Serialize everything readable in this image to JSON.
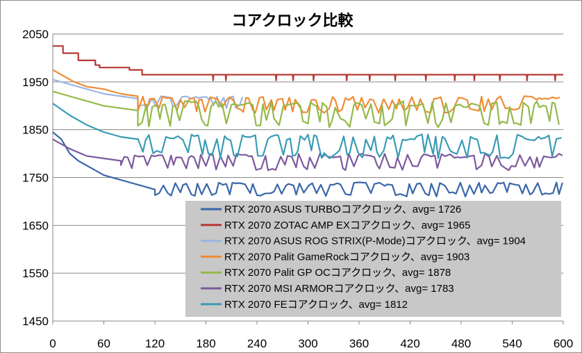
{
  "chart_data": {
    "type": "line",
    "title": "コアクロック比較",
    "xlabel": "",
    "ylabel": "",
    "xlim": [
      0,
      600
    ],
    "ylim": [
      1450,
      2050
    ],
    "x_ticks": [
      0,
      60,
      120,
      180,
      240,
      300,
      360,
      420,
      480,
      540,
      600
    ],
    "y_ticks": [
      1450,
      1550,
      1650,
      1750,
      1850,
      1950,
      2050
    ],
    "x_tick_labels": [
      "0",
      "60",
      "120",
      "180",
      "240",
      "300",
      "360",
      "420",
      "480",
      "540",
      "600"
    ],
    "y_tick_labels": [
      "1450",
      "1550",
      "1650",
      "1750",
      "1850",
      "1950",
      "2050"
    ],
    "grid": "horizontal",
    "legend_position": "bottom-right inside plot",
    "legend_background": "#c8c8c8",
    "series": [
      {
        "name": "RTX 2070 ASUS TURBOコアクロック、avg= 1726",
        "color": "#3a66a8",
        "start": [
          [
            0,
            1845
          ],
          [
            10,
            1830
          ],
          [
            20,
            1800
          ],
          [
            30,
            1785
          ],
          [
            45,
            1770
          ],
          [
            60,
            1755
          ],
          [
            80,
            1745
          ],
          [
            100,
            1735
          ],
          [
            120,
            1725
          ]
        ],
        "steady": {
          "low": 1710,
          "high": 1740,
          "from": 120,
          "to": 600
        }
      },
      {
        "name": "RTX 2070 ZOTAC AMP EXコアクロック、avg= 1965",
        "color": "#b53a35",
        "start": [
          [
            0,
            2025
          ],
          [
            12,
            2025
          ],
          [
            12,
            2010
          ],
          [
            30,
            2010
          ],
          [
            30,
            1995
          ],
          [
            50,
            1995
          ],
          [
            50,
            1985
          ],
          [
            55,
            1985
          ],
          [
            55,
            1980
          ],
          [
            90,
            1980
          ],
          [
            90,
            1975
          ],
          [
            105,
            1975
          ],
          [
            105,
            1965
          ]
        ],
        "steady": {
          "low": 1965,
          "high": 1965,
          "from": 105,
          "to": 600,
          "dips": [
            188,
            203,
            262,
            282,
            306,
            345,
            372,
            402,
            438,
            472,
            495,
            525,
            557,
            590
          ]
        }
      },
      {
        "name": "RTX 2070 ASUS ROG STRIX(P-Mode)コアクロック、avg= 1904",
        "color": "#9ab7e0",
        "start": [
          [
            0,
            1955
          ],
          [
            20,
            1945
          ],
          [
            40,
            1935
          ],
          [
            60,
            1925
          ],
          [
            80,
            1920
          ],
          [
            100,
            1915
          ]
        ],
        "steady": {
          "low": 1895,
          "high": 1920,
          "from": 100,
          "to": 225
        }
      },
      {
        "name": "RTX 2070 Palit GameRockコアクロック、avg= 1903",
        "color": "#ef8c35",
        "start": [
          [
            0,
            1975
          ],
          [
            10,
            1965
          ],
          [
            25,
            1950
          ],
          [
            40,
            1940
          ],
          [
            60,
            1935
          ],
          [
            80,
            1925
          ],
          [
            100,
            1920
          ]
        ],
        "steady": {
          "low": 1885,
          "high": 1920,
          "from": 100,
          "to": 600
        }
      },
      {
        "name": "RTX 2070 Palit GP OCコアクロック、avg= 1878",
        "color": "#93b94a",
        "start": [
          [
            0,
            1930
          ],
          [
            20,
            1920
          ],
          [
            40,
            1910
          ],
          [
            60,
            1900
          ],
          [
            80,
            1895
          ],
          [
            100,
            1890
          ]
        ],
        "steady": {
          "low": 1855,
          "high": 1910,
          "from": 100,
          "to": 600
        }
      },
      {
        "name": "RTX 2070 MSI ARMORコアクロック、avg= 1783",
        "color": "#7c5a9e",
        "start": [
          [
            0,
            1830
          ],
          [
            20,
            1810
          ],
          [
            40,
            1795
          ],
          [
            60,
            1790
          ],
          [
            80,
            1785
          ]
        ],
        "steady": {
          "low": 1765,
          "high": 1800,
          "from": 80,
          "to": 600
        }
      },
      {
        "name": "RTX 2070 FEコアクロック、avg= 1812",
        "color": "#3a9bb5",
        "start": [
          [
            0,
            1905
          ],
          [
            20,
            1880
          ],
          [
            40,
            1860
          ],
          [
            60,
            1845
          ],
          [
            80,
            1835
          ],
          [
            100,
            1830
          ]
        ],
        "steady": {
          "low": 1790,
          "high": 1840,
          "from": 100,
          "to": 600
        }
      }
    ]
  }
}
